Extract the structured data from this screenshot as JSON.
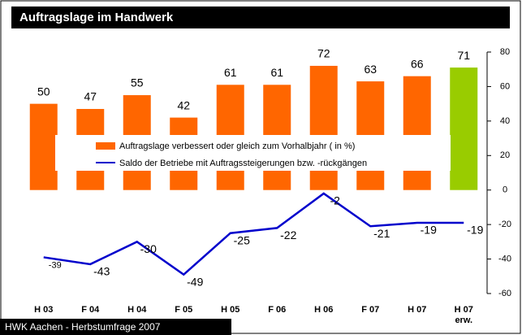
{
  "chart_data": {
    "type": "bar",
    "title": "Auftragslage im Handwerk",
    "categories": [
      "H 03",
      "F 04",
      "H 04",
      "F 05",
      "H 05",
      "F 06",
      "H 06",
      "F 07",
      "H 07",
      "H 07\nerw."
    ],
    "series": [
      {
        "name": "Auftragslage verbessert oder gleich zum Vorhalbjahr ( in %)",
        "type": "bar",
        "color": "#ff6600",
        "highlight_color": "#99cc00",
        "values": [
          50,
          47,
          55,
          42,
          61,
          61,
          72,
          63,
          66,
          71
        ]
      },
      {
        "name": "Saldo der Betriebe mit Auftragssteigerungen bzw. -rückgängen",
        "type": "line",
        "color": "#0000cc",
        "values": [
          -39,
          -43,
          -30,
          -49,
          -25,
          -22,
          -2,
          -21,
          -19,
          -19
        ]
      }
    ],
    "ylim": [
      -60,
      80
    ],
    "yticks": [
      -60,
      -40,
      -20,
      0,
      20,
      40,
      60,
      80
    ],
    "source": "HWK Aachen - Herbstumfrage 2007"
  }
}
